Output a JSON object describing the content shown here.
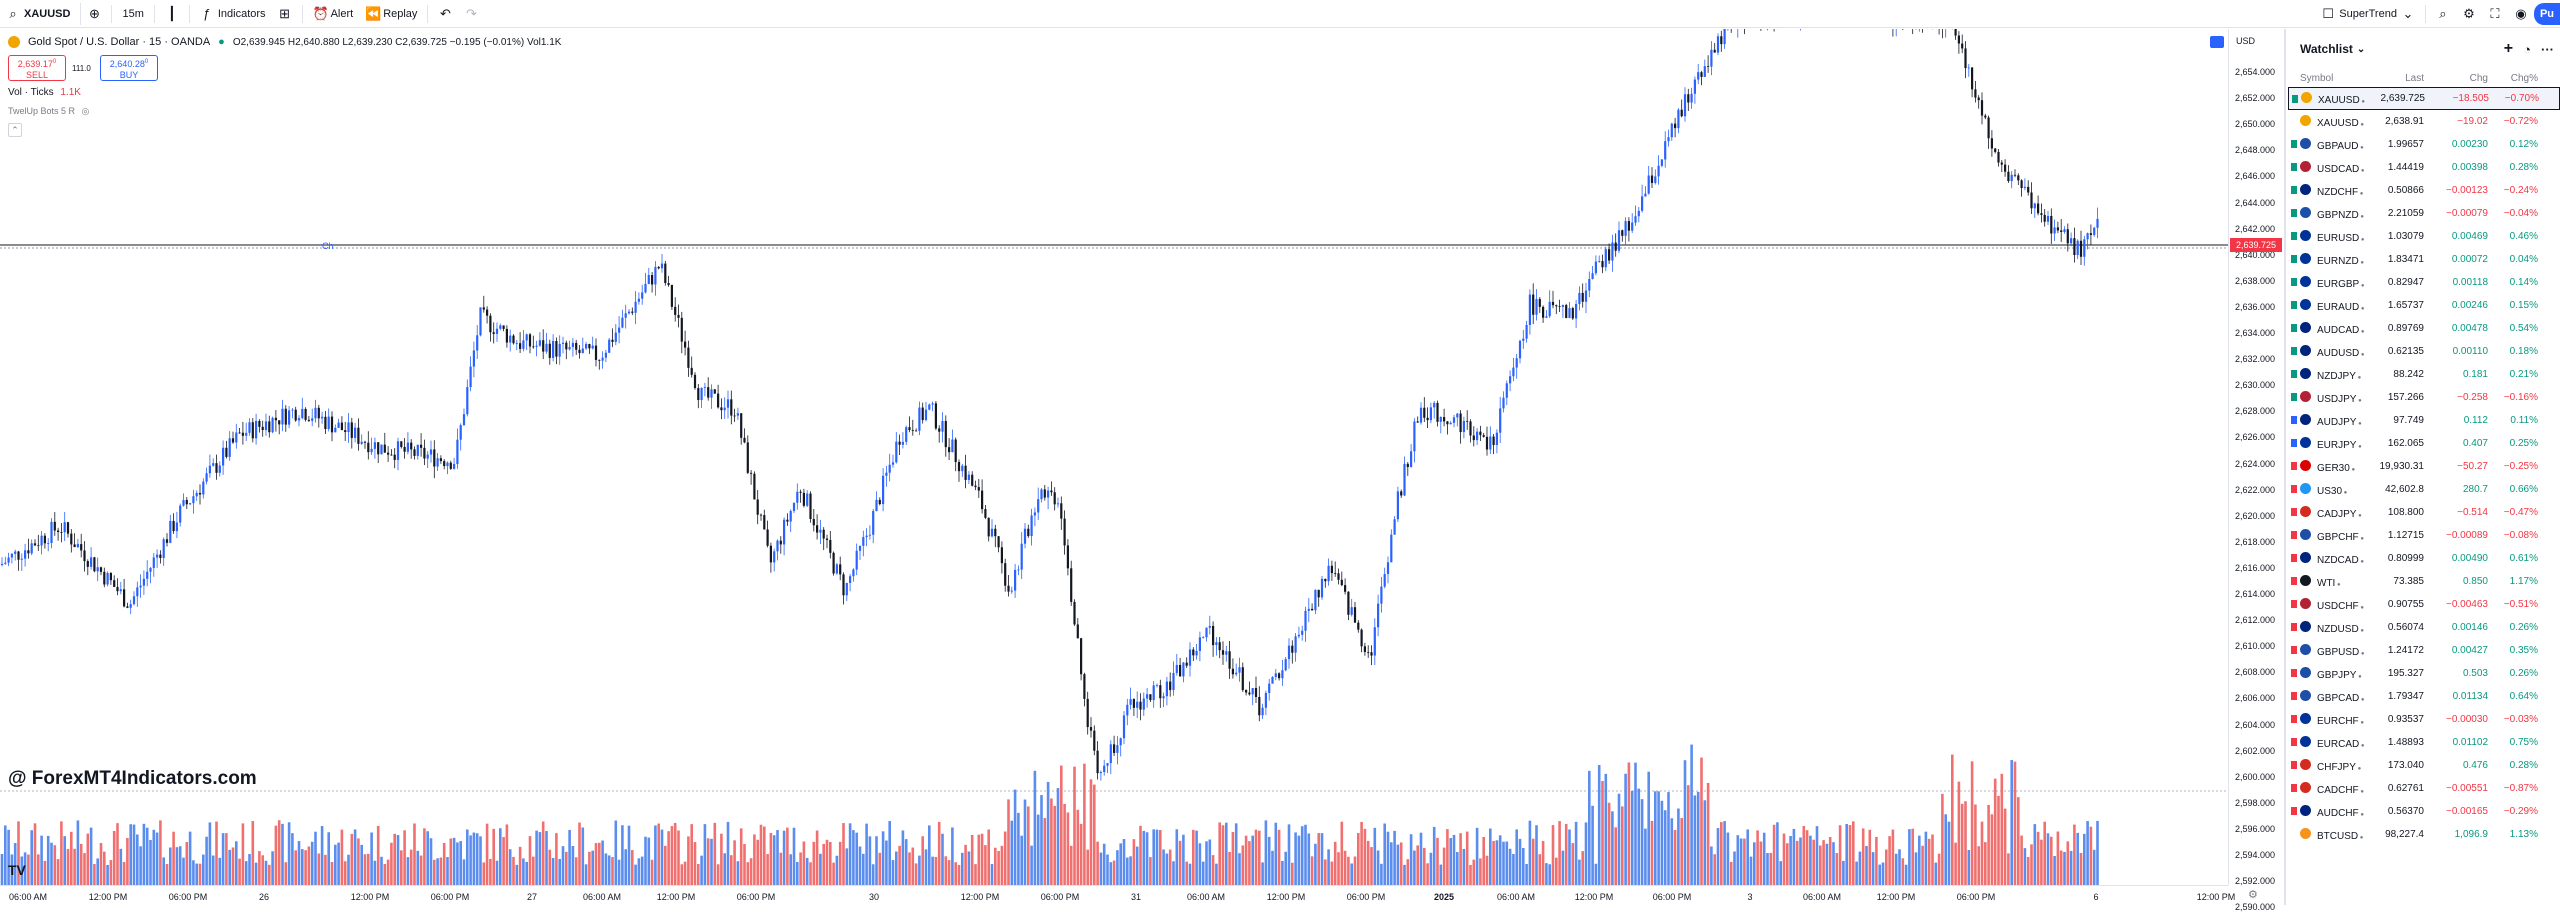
{
  "toolbar": {
    "symbol": "XAUUSD",
    "interval": "15m",
    "indicators": "Indicators",
    "alert": "Alert",
    "replay": "Replay",
    "supertrend": "SuperTrend",
    "publish": "Pu"
  },
  "legend": {
    "title": "Gold Spot / U.S. Dollar · 15 · OANDA",
    "ohlc": "O2,639.945 H2,640.880 L2,639.230 C2,639.725 −0.195 (−0.01%) Vol1.1K",
    "sell_price": "2,639.17",
    "sell_sup": "0",
    "sell_label": "SELL",
    "spread": "111.0",
    "buy_price": "2,640.28",
    "buy_sup": "0",
    "buy_label": "BUY",
    "vol_label": "Vol · Ticks",
    "vol_value": "1.1K",
    "ind2": "TwelUp Bots 5 R",
    "hline_label": "Ch",
    "watermark": "@ ForexMT4Indicators.com",
    "tv": "TV"
  },
  "price_axis": {
    "currency": "USD",
    "current": "2,639.725",
    "labels": [
      "2,654.000",
      "2,652.000",
      "2,650.000",
      "2,648.000",
      "2,646.000",
      "2,644.000",
      "2,642.000",
      "2,640.000",
      "2,638.000",
      "2,636.000",
      "2,634.000",
      "2,632.000",
      "2,630.000",
      "2,628.000",
      "2,626.000",
      "2,624.000",
      "2,622.000",
      "2,620.000",
      "2,618.000",
      "2,616.000",
      "2,614.000",
      "2,612.000",
      "2,610.000",
      "2,608.000",
      "2,606.000",
      "2,604.000",
      "2,602.000",
      "2,600.000",
      "2,598.000",
      "2,596.000",
      "2,594.000",
      "2,592.000",
      "2,590.000"
    ]
  },
  "time_axis": [
    "06:00 AM",
    "12:00 PM",
    "06:00 PM",
    "26",
    "12:00 PM",
    "06:00 PM",
    "27",
    "06:00 AM",
    "12:00 PM",
    "06:00 PM",
    "30",
    "12:00 PM",
    "06:00 PM",
    "31",
    "06:00 AM",
    "12:00 PM",
    "06:00 PM",
    "2025",
    "06:00 AM",
    "12:00 PM",
    "06:00 PM",
    "3",
    "06:00 AM",
    "12:00 PM",
    "06:00 PM",
    "6",
    "12:00 PM"
  ],
  "colors": {
    "up": "#2962ff",
    "down": "#131722",
    "vol_up": "#5b8def",
    "vol_down": "#f07070",
    "pos": "#089981",
    "neg": "#f23645"
  },
  "watchlist": {
    "title": "Watchlist",
    "cols": {
      "symbol": "Symbol",
      "last": "Last",
      "chg": "Chg",
      "pct": "Chg%"
    },
    "rows": [
      {
        "sym": "XAUUSD",
        "last": "2,639.725",
        "chg": "−18.505",
        "pct": "−0.70%",
        "dir": "neg",
        "flag": "#089981",
        "logo": "#f0a500",
        "active": true
      },
      {
        "sym": "XAUUSD",
        "last": "2,638.91",
        "chg": "−19.02",
        "pct": "−0.72%",
        "dir": "neg",
        "flag": "",
        "logo": "#f0a500"
      },
      {
        "sym": "GBPAUD",
        "last": "1.99657",
        "chg": "0.00230",
        "pct": "0.12%",
        "dir": "pos",
        "flag": "#089981",
        "logo": "#1e4fa8"
      },
      {
        "sym": "USDCAD",
        "last": "1.44419",
        "chg": "0.00398",
        "pct": "0.28%",
        "dir": "pos",
        "flag": "#089981",
        "logo": "#b22234"
      },
      {
        "sym": "NZDCHF",
        "last": "0.50866",
        "chg": "−0.00123",
        "pct": "−0.24%",
        "dir": "neg",
        "flag": "#089981",
        "logo": "#00247d"
      },
      {
        "sym": "GBPNZD",
        "last": "2.21059",
        "chg": "−0.00079",
        "pct": "−0.04%",
        "dir": "neg",
        "flag": "#089981",
        "logo": "#1e4fa8"
      },
      {
        "sym": "EURUSD",
        "last": "1.03079",
        "chg": "0.00469",
        "pct": "0.46%",
        "dir": "pos",
        "flag": "#089981",
        "logo": "#003399"
      },
      {
        "sym": "EURNZD",
        "last": "1.83471",
        "chg": "0.00072",
        "pct": "0.04%",
        "dir": "pos",
        "flag": "#089981",
        "logo": "#003399"
      },
      {
        "sym": "EURGBP",
        "last": "0.82947",
        "chg": "0.00118",
        "pct": "0.14%",
        "dir": "pos",
        "flag": "#089981",
        "logo": "#003399"
      },
      {
        "sym": "EURAUD",
        "last": "1.65737",
        "chg": "0.00246",
        "pct": "0.15%",
        "dir": "pos",
        "flag": "#089981",
        "logo": "#003399"
      },
      {
        "sym": "AUDCAD",
        "last": "0.89769",
        "chg": "0.00478",
        "pct": "0.54%",
        "dir": "pos",
        "flag": "#089981",
        "logo": "#00247d"
      },
      {
        "sym": "AUDUSD",
        "last": "0.62135",
        "chg": "0.00110",
        "pct": "0.18%",
        "dir": "pos",
        "flag": "#089981",
        "logo": "#00247d"
      },
      {
        "sym": "NZDJPY",
        "last": "88.242",
        "chg": "0.181",
        "pct": "0.21%",
        "dir": "pos",
        "flag": "#089981",
        "logo": "#00247d"
      },
      {
        "sym": "USDJPY",
        "last": "157.266",
        "chg": "−0.258",
        "pct": "−0.16%",
        "dir": "neg",
        "flag": "#089981",
        "logo": "#b22234"
      },
      {
        "sym": "AUDJPY",
        "last": "97.749",
        "chg": "0.112",
        "pct": "0.11%",
        "dir": "pos",
        "flag": "#2962ff",
        "logo": "#00247d"
      },
      {
        "sym": "EURJPY",
        "last": "162.065",
        "chg": "0.407",
        "pct": "0.25%",
        "dir": "pos",
        "flag": "#2962ff",
        "logo": "#003399"
      },
      {
        "sym": "GER30",
        "last": "19,930.31",
        "chg": "−50.27",
        "pct": "−0.25%",
        "dir": "neg",
        "flag": "#f23645",
        "logo": "#dd0000"
      },
      {
        "sym": "US30",
        "last": "42,602.8",
        "chg": "280.7",
        "pct": "0.66%",
        "dir": "pos",
        "flag": "#f23645",
        "logo": "#2196f3"
      },
      {
        "sym": "CADJPY",
        "last": "108.800",
        "chg": "−0.514",
        "pct": "−0.47%",
        "dir": "neg",
        "flag": "#f23645",
        "logo": "#d52b1e"
      },
      {
        "sym": "GBPCHF",
        "last": "1.12715",
        "chg": "−0.00089",
        "pct": "−0.08%",
        "dir": "neg",
        "flag": "#f23645",
        "logo": "#1e4fa8"
      },
      {
        "sym": "NZDCAD",
        "last": "0.80999",
        "chg": "0.00490",
        "pct": "0.61%",
        "dir": "pos",
        "flag": "#f23645",
        "logo": "#00247d"
      },
      {
        "sym": "WTI",
        "last": "73.385",
        "chg": "0.850",
        "pct": "1.17%",
        "dir": "pos",
        "flag": "#f23645",
        "logo": "#131722"
      },
      {
        "sym": "USDCHF",
        "last": "0.90755",
        "chg": "−0.00463",
        "pct": "−0.51%",
        "dir": "neg",
        "flag": "#f23645",
        "logo": "#b22234"
      },
      {
        "sym": "NZDUSD",
        "last": "0.56074",
        "chg": "0.00146",
        "pct": "0.26%",
        "dir": "pos",
        "flag": "#f23645",
        "logo": "#00247d"
      },
      {
        "sym": "GBPUSD",
        "last": "1.24172",
        "chg": "0.00427",
        "pct": "0.35%",
        "dir": "pos",
        "flag": "#f23645",
        "logo": "#1e4fa8"
      },
      {
        "sym": "GBPJPY",
        "last": "195.327",
        "chg": "0.503",
        "pct": "0.26%",
        "dir": "pos",
        "flag": "#f23645",
        "logo": "#1e4fa8"
      },
      {
        "sym": "GBPCAD",
        "last": "1.79347",
        "chg": "0.01134",
        "pct": "0.64%",
        "dir": "pos",
        "flag": "#f23645",
        "logo": "#1e4fa8"
      },
      {
        "sym": "EURCHF",
        "last": "0.93537",
        "chg": "−0.00030",
        "pct": "−0.03%",
        "dir": "neg",
        "flag": "#f23645",
        "logo": "#003399"
      },
      {
        "sym": "EURCAD",
        "last": "1.48893",
        "chg": "0.01102",
        "pct": "0.75%",
        "dir": "pos",
        "flag": "#f23645",
        "logo": "#003399"
      },
      {
        "sym": "CHFJPY",
        "last": "173.040",
        "chg": "0.476",
        "pct": "0.28%",
        "dir": "pos",
        "flag": "#f23645",
        "logo": "#d52b1e"
      },
      {
        "sym": "CADCHF",
        "last": "0.62761",
        "chg": "−0.00551",
        "pct": "−0.87%",
        "dir": "neg",
        "flag": "#f23645",
        "logo": "#d52b1e"
      },
      {
        "sym": "AUDCHF",
        "last": "0.56370",
        "chg": "−0.00165",
        "pct": "−0.29%",
        "dir": "neg",
        "flag": "#f23645",
        "logo": "#00247d"
      },
      {
        "sym": "BTCUSD",
        "last": "98,227.4",
        "chg": "1,096.9",
        "pct": "1.13%",
        "dir": "pos",
        "flag": "",
        "logo": "#f7931a"
      }
    ]
  }
}
